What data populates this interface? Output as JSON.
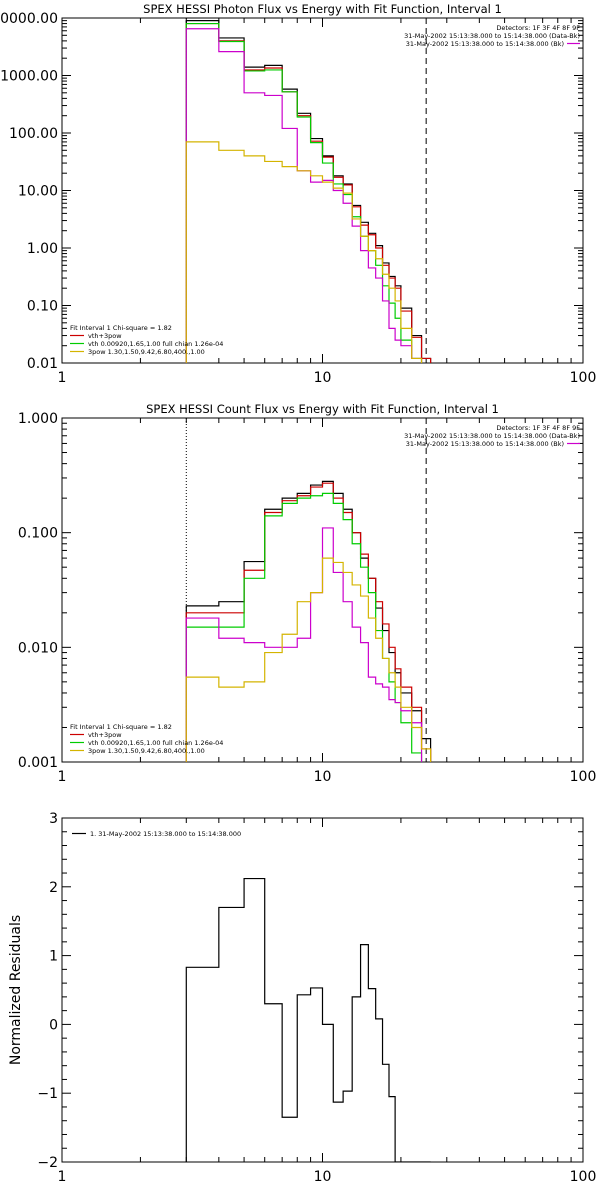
{
  "colors": {
    "black": "#000000",
    "red": "#cc0000",
    "green": "#00cc00",
    "magenta": "#cc00cc",
    "yellow": "#d4b400"
  },
  "icons": [
    "legend-line-icon"
  ],
  "chart_data": [
    {
      "type": "line",
      "title": "SPEX HESSI Photon Flux vs Energy with Fit Function, Interval 1",
      "xlabel": "",
      "ylabel": "",
      "xscale": "log",
      "yscale": "log",
      "xlim": [
        1,
        100
      ],
      "ylim": [
        0.01,
        10000
      ],
      "x_ticks": [
        "1",
        "10",
        "100"
      ],
      "y_ticks": [
        "0.01",
        "0.10",
        "1.00",
        "10.00",
        "100.00",
        "1000.00",
        "10000.00"
      ],
      "vertical_markers": [
        {
          "x": 3.0,
          "style": "dotted"
        },
        {
          "x": 25.0,
          "style": "dashed"
        }
      ],
      "header_lines": [
        "Detectors: 1F 3F 4F 8F 9F",
        "31-May-2002 15:13:38.000 to 15:14:38.000 (Data-Bk)",
        "31-May-2002 15:13:38.000 to 15:14:38.000 (Bk)"
      ],
      "legend_title": "Fit Interval 1    Chi-square = 1.82",
      "legend_entries": [
        "vth+3pow",
        "vth 0.00920,1.65,1.00  full chian 1.26e-04",
        "3pow 1.30,1.50,9.42,6.80,400.,1.00"
      ],
      "bin_edges": [
        3,
        4,
        5,
        6,
        7,
        8,
        9,
        10,
        11,
        12,
        13,
        14,
        15,
        16,
        17,
        18,
        19,
        20,
        22,
        24,
        26,
        28
      ],
      "series": [
        {
          "name": "Data-Bk",
          "color": "black",
          "values": [
            9000,
            4500,
            1400,
            1500,
            580,
            220,
            80,
            40,
            18,
            13,
            5.5,
            2.8,
            1.8,
            1.1,
            0.55,
            0.32,
            0.22,
            0.09,
            0.03,
            0.012,
            null
          ]
        },
        {
          "name": "vth+3pow",
          "color": "red",
          "values": [
            8000,
            4000,
            1250,
            1350,
            520,
            200,
            72,
            38,
            17,
            12.5,
            5.2,
            2.5,
            1.7,
            1.0,
            0.5,
            0.3,
            0.2,
            0.08,
            0.028,
            0.012,
            null
          ]
        },
        {
          "name": "vth",
          "color": "green",
          "values": [
            8000,
            3900,
            1200,
            1250,
            520,
            190,
            68,
            30,
            13,
            8.5,
            3.5,
            1.6,
            0.9,
            0.5,
            0.22,
            0.11,
            0.06,
            0.025,
            0.012,
            null,
            null
          ]
        },
        {
          "name": "Bk",
          "color": "magenta",
          "values": [
            6500,
            2600,
            500,
            450,
            120,
            22,
            14,
            15,
            10,
            6,
            2.4,
            0.9,
            0.45,
            0.3,
            0.12,
            0.04,
            0.025,
            0.02,
            0.012,
            null,
            null
          ]
        },
        {
          "name": "3pow",
          "color": "yellow",
          "values": [
            70,
            50,
            40,
            32,
            26,
            22,
            18,
            14,
            11,
            9,
            3.2,
            1.6,
            0.9,
            0.65,
            0.35,
            0.2,
            0.12,
            0.04,
            0.012,
            null,
            null
          ]
        }
      ]
    },
    {
      "type": "line",
      "title": "SPEX HESSI Count Flux vs Energy with Fit Function, Interval 1",
      "xlabel": "",
      "ylabel": "",
      "xscale": "log",
      "yscale": "log",
      "xlim": [
        1,
        100
      ],
      "ylim": [
        0.001,
        1.0
      ],
      "x_ticks": [
        "1",
        "10",
        "100"
      ],
      "y_ticks": [
        "0.001",
        "0.010",
        "0.100",
        "1.000"
      ],
      "vertical_markers": [
        {
          "x": 3.0,
          "style": "dotted"
        },
        {
          "x": 25.0,
          "style": "dashed"
        }
      ],
      "header_lines": [
        "Detectors: 1F 3F 4F 8F 9F",
        "31-May-2002 15:13:38.000 to 15:14:38.000 (Data-Bk)",
        "31-May-2002 15:13:38.000 to 15:14:38.000 (Bk)"
      ],
      "legend_title": "Fit Interval 1    Chi-square = 1.82",
      "legend_entries": [
        "vth+3pow",
        "vth 0.00920,1.65,1.00  full chian 1.26e-04",
        "3pow 1.30,1.50,9.42,6.80,400.,1.00"
      ],
      "bin_edges": [
        3,
        4,
        5,
        6,
        7,
        8,
        9,
        10,
        11,
        12,
        13,
        14,
        15,
        16,
        17,
        18,
        19,
        20,
        22,
        24,
        26,
        28
      ],
      "series": [
        {
          "name": "Data-Bk",
          "color": "black",
          "values": [
            0.023,
            0.025,
            0.056,
            0.16,
            0.2,
            0.22,
            0.26,
            0.28,
            0.22,
            0.16,
            0.1,
            0.06,
            0.04,
            0.022,
            0.014,
            0.009,
            0.006,
            0.004,
            0.0028,
            0.0016,
            null
          ]
        },
        {
          "name": "vth+3pow",
          "color": "red",
          "values": [
            0.02,
            0.02,
            0.047,
            0.15,
            0.19,
            0.21,
            0.25,
            0.27,
            0.2,
            0.15,
            0.1,
            0.065,
            0.04,
            0.025,
            0.016,
            0.01,
            0.0065,
            0.0045,
            0.003,
            0.0013,
            null
          ]
        },
        {
          "name": "vth",
          "color": "green",
          "values": [
            0.015,
            0.015,
            0.04,
            0.14,
            0.18,
            0.2,
            0.21,
            0.22,
            0.18,
            0.13,
            0.08,
            0.05,
            0.03,
            0.014,
            0.008,
            0.005,
            0.0033,
            0.0022,
            0.0012,
            null,
            null
          ]
        },
        {
          "name": "Bk",
          "color": "magenta",
          "values": [
            0.018,
            0.012,
            0.011,
            0.01,
            0.01,
            0.012,
            0.03,
            0.11,
            0.045,
            0.025,
            0.015,
            0.011,
            0.0055,
            0.0048,
            0.0045,
            0.0035,
            0.0033,
            0.0028,
            0.0022,
            null,
            null
          ]
        },
        {
          "name": "3pow",
          "color": "yellow",
          "values": [
            0.0055,
            0.0045,
            0.005,
            0.009,
            0.013,
            0.025,
            0.03,
            0.06,
            0.055,
            0.045,
            0.035,
            0.028,
            0.018,
            0.012,
            0.008,
            0.006,
            0.0045,
            0.003,
            0.002,
            0.0013,
            null
          ]
        }
      ]
    },
    {
      "type": "line",
      "title": "",
      "xlabel": "",
      "ylabel": "Normalized Residuals",
      "xscale": "log",
      "yscale": "linear",
      "xlim": [
        1,
        100
      ],
      "ylim": [
        -2,
        3
      ],
      "x_ticks": [
        "1",
        "10",
        "100"
      ],
      "y_ticks": [
        "-2",
        "-1",
        "0",
        "1",
        "2",
        "3"
      ],
      "legend_entries": [
        "1. 31-May-2002 15:13:38.000 to 15:14:38.000"
      ],
      "bin_edges": [
        3,
        4,
        5,
        6,
        7,
        8,
        9,
        10,
        11,
        12,
        13,
        14,
        15,
        16,
        17,
        18,
        19,
        20,
        22,
        24,
        26
      ],
      "series": [
        {
          "name": "1. 31-May-2002 15:13:38.000 to 15:14:38.000",
          "color": "black",
          "values": [
            0.83,
            1.7,
            2.12,
            0.3,
            -1.35,
            0.43,
            0.53,
            0.0,
            -1.13,
            -0.97,
            0.4,
            1.16,
            0.52,
            0.08,
            -0.58,
            -1.05,
            -2.0,
            -2.0,
            -2.0,
            -2.0
          ]
        }
      ]
    }
  ]
}
